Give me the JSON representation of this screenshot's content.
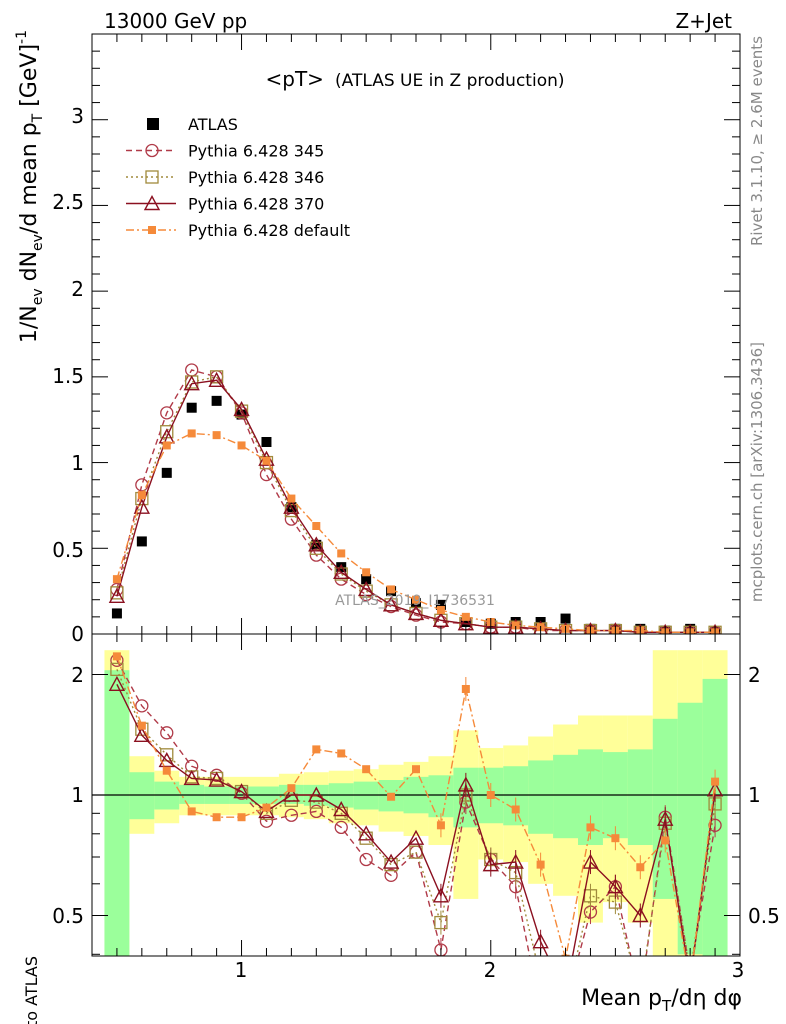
{
  "header": {
    "left": "13000 GeV pp",
    "right": "Z+Jet"
  },
  "side": {
    "rivet": "Rivet 3.1.10, ≥ 2.6M events",
    "mcplots": "mcplots.cern.ch [arXiv:1306.3436]"
  },
  "watermark": "ATLAS_2019_I1736531",
  "colors": {
    "data": "#000000",
    "p345": "#b03a48",
    "p346": "#a08a3c",
    "p370": "#8b1020",
    "pdef": "#f58a3a",
    "band_green": "#9bff9b",
    "band_yellow": "#ffff99"
  },
  "chart_data": [
    {
      "type": "scatter",
      "title": "<pT> (ATLAS UE in Z production)",
      "title_main": "<pT>",
      "title_sub": "(ATLAS UE in Z production)",
      "ylabel": "1/N_ev dN_ev/d mean p_T [GeV]^-1",
      "xlim": [
        0.4,
        3.0
      ],
      "ylim": [
        0,
        3.5
      ],
      "yticks": [
        "0",
        "0.5",
        "1",
        "1.5",
        "2",
        "2.5",
        "3"
      ],
      "legend_position": "top-left",
      "x": [
        0.5,
        0.6,
        0.7,
        0.8,
        0.9,
        1.0,
        1.1,
        1.2,
        1.3,
        1.4,
        1.5,
        1.6,
        1.7,
        1.8,
        1.9,
        2.0,
        2.1,
        2.2,
        2.3,
        2.4,
        2.5,
        2.6,
        2.7,
        2.8,
        2.9
      ],
      "series": [
        {
          "name": "ATLAS",
          "key": "data",
          "values": [
            0.12,
            0.54,
            0.94,
            1.32,
            1.36,
            1.28,
            1.12,
            0.74,
            0.52,
            0.39,
            0.32,
            0.25,
            0.18,
            0.17,
            0.07,
            0.06,
            0.07,
            0.07,
            0.09,
            0.03,
            0.03,
            0.03,
            0.02,
            0.03,
            0.01
          ]
        },
        {
          "name": "Pythia 6.428 345",
          "key": "p345",
          "values": [
            0.26,
            0.87,
            1.29,
            1.54,
            1.5,
            1.29,
            0.93,
            0.67,
            0.46,
            0.32,
            0.23,
            0.16,
            0.11,
            0.07,
            0.06,
            0.04,
            0.04,
            0.02,
            0.02,
            0.02,
            0.02,
            0.01,
            0.01,
            0.01,
            0.01
          ]
        },
        {
          "name": "Pythia 6.428 346",
          "key": "p346",
          "values": [
            0.24,
            0.79,
            1.18,
            1.47,
            1.5,
            1.3,
            1.0,
            0.72,
            0.5,
            0.35,
            0.25,
            0.17,
            0.12,
            0.08,
            0.06,
            0.04,
            0.04,
            0.03,
            0.02,
            0.02,
            0.02,
            0.01,
            0.01,
            0.01,
            0.01
          ]
        },
        {
          "name": "Pythia 6.428 370",
          "key": "p370",
          "values": [
            0.22,
            0.74,
            1.15,
            1.46,
            1.48,
            1.31,
            1.02,
            0.74,
            0.52,
            0.36,
            0.26,
            0.17,
            0.12,
            0.08,
            0.06,
            0.04,
            0.04,
            0.03,
            0.02,
            0.02,
            0.02,
            0.01,
            0.01,
            0.01,
            0.01
          ]
        },
        {
          "name": "Pythia 6.428 default",
          "key": "pdef",
          "values": [
            0.32,
            0.81,
            1.1,
            1.17,
            1.16,
            1.1,
            1.01,
            0.79,
            0.63,
            0.47,
            0.36,
            0.26,
            0.2,
            0.14,
            0.1,
            0.07,
            0.05,
            0.04,
            0.03,
            0.02,
            0.02,
            0.02,
            0.01,
            0.01,
            0.01
          ]
        }
      ]
    },
    {
      "type": "line",
      "ylabel": "Ratio to ATLAS",
      "xlabel": "Mean p_T/dη dφ",
      "xlim": [
        0.4,
        3.0
      ],
      "ylim": [
        0.35,
        2.3
      ],
      "yticks": [
        "0.5",
        "1",
        "2"
      ],
      "xticks": [
        "1",
        "2",
        "3"
      ],
      "x": [
        0.5,
        0.6,
        0.7,
        0.8,
        0.9,
        1.0,
        1.1,
        1.2,
        1.3,
        1.4,
        1.5,
        1.6,
        1.7,
        1.8,
        1.9,
        2.0,
        2.1,
        2.2,
        2.3,
        2.4,
        2.5,
        2.6,
        2.7,
        2.8,
        2.9
      ],
      "band_green": [
        [
          0.35,
          2.05
        ],
        [
          0.87,
          1.14
        ],
        [
          0.92,
          1.08
        ],
        [
          0.95,
          1.06
        ],
        [
          0.95,
          1.05
        ],
        [
          0.95,
          1.05
        ],
        [
          0.95,
          1.05
        ],
        [
          0.95,
          1.06
        ],
        [
          0.94,
          1.06
        ],
        [
          0.93,
          1.07
        ],
        [
          0.92,
          1.08
        ],
        [
          0.91,
          1.09
        ],
        [
          0.9,
          1.11
        ],
        [
          0.88,
          1.12
        ],
        [
          0.83,
          1.17
        ],
        [
          0.85,
          1.17
        ],
        [
          0.84,
          1.18
        ],
        [
          0.8,
          1.22
        ],
        [
          0.78,
          1.26
        ],
        [
          0.75,
          1.3
        ],
        [
          0.78,
          1.28
        ],
        [
          0.75,
          1.3
        ],
        [
          0.55,
          1.55
        ],
        [
          0.4,
          1.7
        ],
        [
          0.35,
          1.95
        ]
      ],
      "band_yellow": [
        [
          0.35,
          2.3
        ],
        [
          0.8,
          1.25
        ],
        [
          0.85,
          1.15
        ],
        [
          0.89,
          1.11
        ],
        [
          0.89,
          1.11
        ],
        [
          0.89,
          1.11
        ],
        [
          0.89,
          1.11
        ],
        [
          0.88,
          1.13
        ],
        [
          0.87,
          1.14
        ],
        [
          0.85,
          1.15
        ],
        [
          0.84,
          1.16
        ],
        [
          0.81,
          1.19
        ],
        [
          0.79,
          1.21
        ],
        [
          0.75,
          1.25
        ],
        [
          0.55,
          1.45
        ],
        [
          0.69,
          1.31
        ],
        [
          0.68,
          1.33
        ],
        [
          0.6,
          1.4
        ],
        [
          0.56,
          1.5
        ],
        [
          0.48,
          1.58
        ],
        [
          0.54,
          1.58
        ],
        [
          0.48,
          1.58
        ],
        [
          0.35,
          2.3
        ],
        [
          0.35,
          2.3
        ],
        [
          0.35,
          2.3
        ]
      ],
      "series": [
        {
          "name": "Pythia 6.428 345",
          "key": "p345",
          "values": [
            2.17,
            1.67,
            1.43,
            1.18,
            1.12,
            1.01,
            0.86,
            0.89,
            0.91,
            0.83,
            0.69,
            0.63,
            0.72,
            0.41,
            0.96,
            0.69,
            0.59,
            0.29,
            0.3,
            0.51,
            0.59,
            0.31,
            0.88,
            0.36,
            0.84
          ]
        },
        {
          "name": "Pythia 6.428 346",
          "key": "p346",
          "values": [
            2.06,
            1.46,
            1.26,
            1.11,
            1.1,
            1.02,
            0.9,
            0.97,
            0.96,
            0.9,
            0.78,
            0.67,
            0.72,
            0.48,
            1.0,
            0.69,
            0.64,
            0.35,
            0.3,
            0.56,
            0.54,
            0.32,
            0.85,
            0.36,
            0.95
          ]
        },
        {
          "name": "Pythia 6.428 370",
          "key": "p370",
          "values": [
            1.89,
            1.41,
            1.22,
            1.1,
            1.09,
            1.02,
            0.91,
            1.0,
            1.0,
            0.92,
            0.8,
            0.68,
            0.78,
            0.56,
            1.06,
            0.67,
            0.68,
            0.43,
            0.32,
            0.68,
            0.59,
            0.5,
            0.87,
            0.34,
            1.03
          ]
        },
        {
          "name": "Pythia 6.428 default",
          "key": "pdef",
          "values": [
            2.22,
            1.49,
            1.15,
            0.91,
            0.88,
            0.88,
            0.93,
            1.04,
            1.3,
            1.27,
            1.16,
            0.99,
            1.16,
            0.84,
            1.84,
            1.0,
            0.92,
            0.67,
            0.39,
            0.83,
            0.78,
            0.66,
            0.77,
            0.34,
            1.08
          ]
        }
      ]
    }
  ]
}
